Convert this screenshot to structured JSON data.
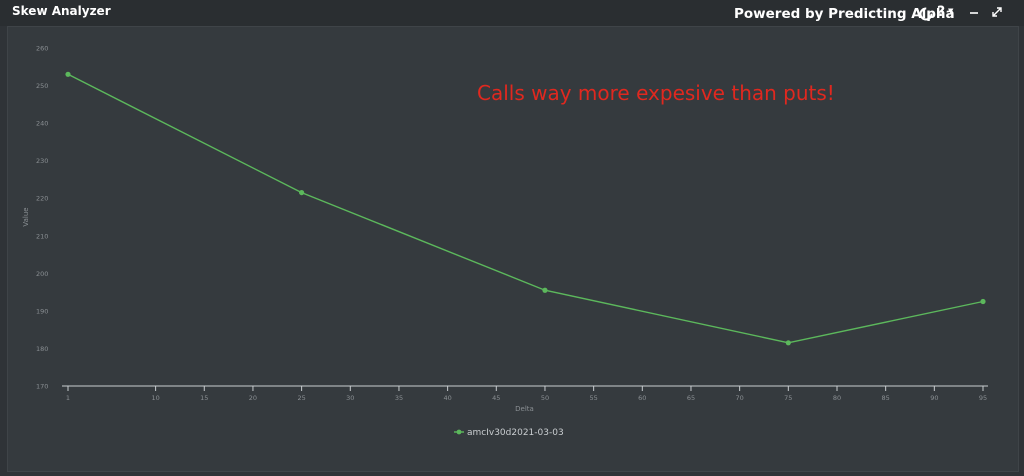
{
  "app": {
    "title": "Skew Analyzer",
    "powered_by": "Powered by Predicting Alpha",
    "help_label": "?"
  },
  "icons": {
    "refresh": "refresh-icon",
    "help": "help-icon",
    "minimize": "minimize-icon",
    "maximize": "maximize-icon"
  },
  "annotation": "Calls way more expesive than puts!",
  "colors": {
    "background": "#2f3337",
    "panel": "#353a3e",
    "series": "#5cb85c",
    "annotation": "#e0281f",
    "text": "#ffffff"
  },
  "chart_data": {
    "type": "line",
    "xlabel": "Delta",
    "ylabel": "Value",
    "xlim": [
      1,
      95
    ],
    "ylim": [
      170,
      260
    ],
    "x_ticks": [
      1,
      10,
      15,
      20,
      25,
      30,
      35,
      40,
      45,
      50,
      55,
      60,
      65,
      70,
      75,
      80,
      85,
      90,
      95
    ],
    "y_ticks": [
      170,
      180,
      190,
      200,
      210,
      220,
      230,
      240,
      250,
      260
    ],
    "grid": false,
    "legend": "bottom-center",
    "series": [
      {
        "name": "amcIv30d2021-03-03",
        "x": [
          1,
          25,
          50,
          75,
          95
        ],
        "y": [
          253,
          221.5,
          195.5,
          181.5,
          192.5
        ]
      }
    ]
  }
}
